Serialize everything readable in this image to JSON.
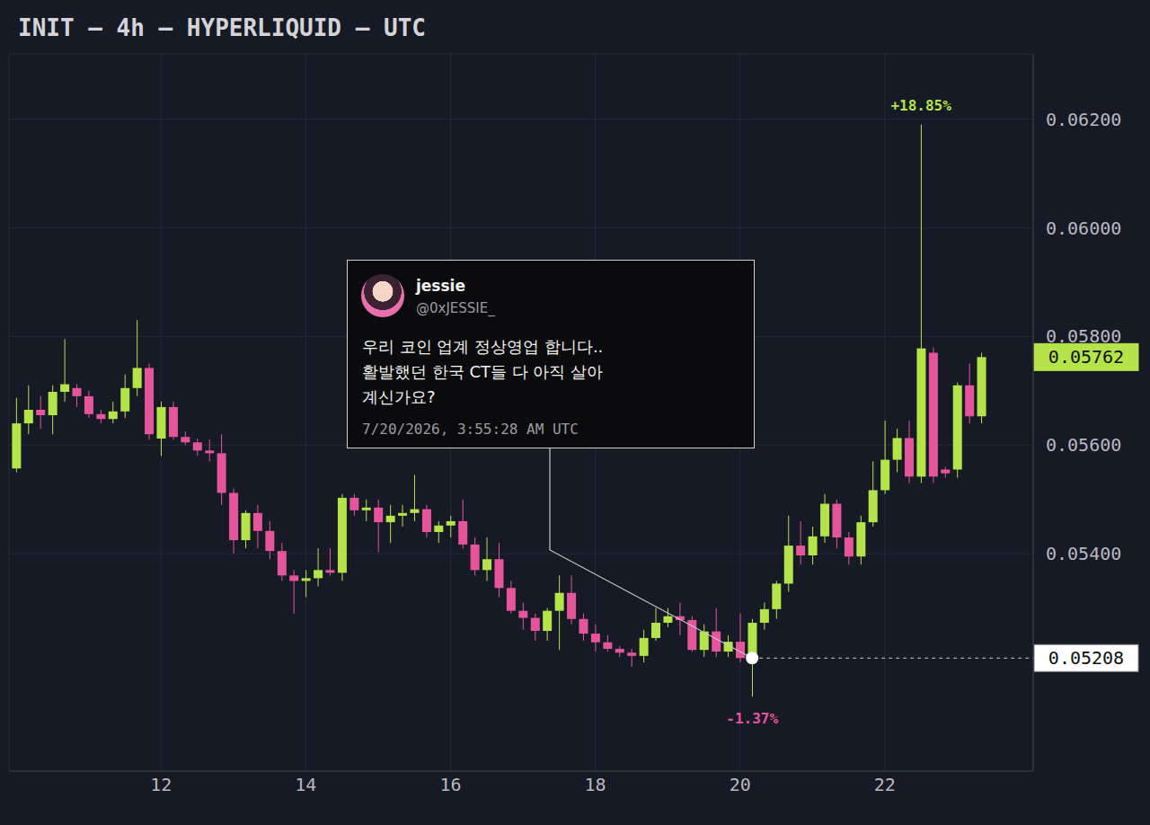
{
  "chart_data": {
    "type": "candlestick",
    "title": "INIT — 4h — HYPERLIQUID — UTC",
    "x": [
      10,
      10.167,
      10.333,
      10.5,
      10.667,
      10.833,
      11,
      11.167,
      11.333,
      11.5,
      11.667,
      11.833,
      12,
      12.167,
      12.333,
      12.5,
      12.667,
      12.833,
      13,
      13.167,
      13.333,
      13.5,
      13.667,
      13.833,
      14,
      14.167,
      14.333,
      14.5,
      14.667,
      14.833,
      15,
      15.167,
      15.333,
      15.5,
      15.667,
      15.833,
      16,
      16.167,
      16.333,
      16.5,
      16.667,
      16.833,
      17,
      17.167,
      17.333,
      17.5,
      17.667,
      17.833,
      18,
      18.167,
      18.333,
      18.5,
      18.667,
      18.833,
      19,
      19.167,
      19.333,
      19.5,
      19.667,
      19.833,
      20,
      20.167,
      20.333,
      20.5,
      20.667,
      20.833,
      21,
      21.167,
      21.333,
      21.5,
      21.667,
      21.833,
      22,
      22.167,
      22.333,
      22.5,
      22.667,
      22.833,
      23,
      23.167,
      23.333
    ],
    "open": [
      0.05557,
      0.0564,
      0.05665,
      0.05655,
      0.05698,
      0.05705,
      0.0569,
      0.05657,
      0.05648,
      0.05662,
      0.05705,
      0.05742,
      0.05612,
      0.0567,
      0.05615,
      0.05605,
      0.0559,
      0.05585,
      0.05512,
      0.05425,
      0.05475,
      0.05442,
      0.05405,
      0.0536,
      0.0535,
      0.05355,
      0.0537,
      0.05365,
      0.05503,
      0.0548,
      0.05485,
      0.05458,
      0.0547,
      0.05475,
      0.05482,
      0.0544,
      0.05452,
      0.0546,
      0.05417,
      0.0537,
      0.0539,
      0.05337,
      0.05295,
      0.05282,
      0.05258,
      0.05295,
      0.05328,
      0.0528,
      0.05253,
      0.05237,
      0.05225,
      0.05218,
      0.05212,
      0.05245,
      0.05273,
      0.05285,
      0.05278,
      0.05223,
      0.05257,
      0.0522,
      0.05238,
      0.05208,
      0.05273,
      0.05298,
      0.05345,
      0.05415,
      0.05397,
      0.05432,
      0.05492,
      0.0543,
      0.05395,
      0.05458,
      0.05517,
      0.05573,
      0.05613,
      0.05542,
      0.0577,
      0.05555,
      0.05555,
      0.0571,
      0.05653
    ],
    "high": [
      0.05687,
      0.0571,
      0.0569,
      0.0571,
      0.05795,
      0.05712,
      0.057,
      0.05665,
      0.0568,
      0.0573,
      0.0583,
      0.0575,
      0.0568,
      0.0568,
      0.05625,
      0.05612,
      0.0561,
      0.0562,
      0.0552,
      0.0548,
      0.0549,
      0.0546,
      0.0542,
      0.0537,
      0.0537,
      0.0541,
      0.0541,
      0.0551,
      0.0551,
      0.055,
      0.055,
      0.0549,
      0.0549,
      0.05545,
      0.0549,
      0.0546,
      0.0547,
      0.055,
      0.0543,
      0.0543,
      0.0542,
      0.0535,
      0.0531,
      0.0529,
      0.053,
      0.0536,
      0.0536,
      0.0529,
      0.0527,
      0.0525,
      0.0523,
      0.05225,
      0.0526,
      0.053,
      0.053,
      0.0531,
      0.05285,
      0.0527,
      0.053,
      0.0525,
      0.0529,
      0.0528,
      0.0531,
      0.0535,
      0.0547,
      0.0546,
      0.0545,
      0.0551,
      0.055,
      0.0544,
      0.0547,
      0.0557,
      0.05645,
      0.0563,
      0.05645,
      0.0619,
      0.0578,
      0.0556,
      0.05715,
      0.0575,
      0.0577
    ],
    "low": [
      0.0555,
      0.0562,
      0.0563,
      0.0562,
      0.0568,
      0.0567,
      0.0565,
      0.0564,
      0.0564,
      0.0565,
      0.0569,
      0.0561,
      0.0558,
      0.0561,
      0.056,
      0.0558,
      0.0557,
      0.0549,
      0.054,
      0.0541,
      0.0541,
      0.0539,
      0.0535,
      0.0529,
      0.0532,
      0.0534,
      0.0536,
      0.0535,
      0.0547,
      0.0546,
      0.05403,
      0.0542,
      0.0545,
      0.0546,
      0.0543,
      0.0542,
      0.0543,
      0.0541,
      0.0536,
      0.0535,
      0.0532,
      0.0529,
      0.0526,
      0.0524,
      0.0524,
      0.05223,
      0.0527,
      0.0524,
      0.0522,
      0.0522,
      0.0521,
      0.05192,
      0.052,
      0.0524,
      0.05265,
      0.0525,
      0.0522,
      0.0521,
      0.0521,
      0.0521,
      0.052,
      0.05137,
      0.0526,
      0.0528,
      0.0533,
      0.0538,
      0.0538,
      0.0542,
      0.0541,
      0.0538,
      0.0538,
      0.0545,
      0.0551,
      0.0555,
      0.0553,
      0.0553,
      0.0553,
      0.0554,
      0.0554,
      0.0564,
      0.0564
    ],
    "close": [
      0.0564,
      0.05665,
      0.05655,
      0.05698,
      0.05712,
      0.0569,
      0.05657,
      0.05648,
      0.05662,
      0.05705,
      0.05742,
      0.0562,
      0.0567,
      0.05615,
      0.05605,
      0.0559,
      0.05585,
      0.05512,
      0.05425,
      0.05475,
      0.05442,
      0.05405,
      0.0536,
      0.0535,
      0.05355,
      0.0537,
      0.05365,
      0.05503,
      0.0548,
      0.05485,
      0.05458,
      0.0547,
      0.05475,
      0.05482,
      0.0544,
      0.05452,
      0.0546,
      0.05417,
      0.0537,
      0.0539,
      0.05337,
      0.05295,
      0.05282,
      0.05258,
      0.05295,
      0.05328,
      0.0528,
      0.05253,
      0.05237,
      0.05225,
      0.05218,
      0.05212,
      0.05245,
      0.05273,
      0.05285,
      0.05278,
      0.05223,
      0.05257,
      0.0522,
      0.05238,
      0.05208,
      0.05273,
      0.05298,
      0.05345,
      0.05415,
      0.05397,
      0.05432,
      0.05492,
      0.0543,
      0.05395,
      0.05458,
      0.05517,
      0.05573,
      0.05613,
      0.05542,
      0.05778,
      0.05542,
      0.05548,
      0.0571,
      0.05653,
      0.05762
    ],
    "colors": [
      "#b4e34a",
      "#b4e34a",
      "#e4559b",
      "#b4e34a",
      "#b4e34a",
      "#e4559b",
      "#e4559b",
      "#e4559b",
      "#b4e34a",
      "#b4e34a",
      "#b4e34a",
      "#e4559b",
      "#b4e34a",
      "#e4559b",
      "#e4559b",
      "#e4559b",
      "#e4559b",
      "#e4559b",
      "#e4559b",
      "#b4e34a",
      "#e4559b",
      "#e4559b",
      "#e4559b",
      "#e4559b",
      "#b4e34a",
      "#b4e34a",
      "#e4559b",
      "#b4e34a",
      "#e4559b",
      "#b4e34a",
      "#e4559b",
      "#b4e34a",
      "#b4e34a",
      "#b4e34a",
      "#e4559b",
      "#b4e34a",
      "#b4e34a",
      "#e4559b",
      "#e4559b",
      "#b4e34a",
      "#e4559b",
      "#e4559b",
      "#e4559b",
      "#e4559b",
      "#b4e34a",
      "#b4e34a",
      "#e4559b",
      "#e4559b",
      "#e4559b",
      "#e4559b",
      "#e4559b",
      "#e4559b",
      "#b4e34a",
      "#b4e34a",
      "#b4e34a",
      "#e4559b",
      "#e4559b",
      "#b4e34a",
      "#e4559b",
      "#b4e34a",
      "#e4559b",
      "#b4e34a",
      "#b4e34a",
      "#b4e34a",
      "#b4e34a",
      "#e4559b",
      "#b4e34a",
      "#b4e34a",
      "#e4559b",
      "#e4559b",
      "#b4e34a",
      "#b4e34a",
      "#b4e34a",
      "#b4e34a",
      "#e4559b",
      "#b4e34a",
      "#e4559b",
      "#e4559b",
      "#b4e34a",
      "#e4559b",
      "#b4e34a"
    ],
    "xlim": [
      9.9,
      24.05
    ],
    "xticks": [
      12,
      14,
      16,
      18,
      20,
      22
    ],
    "ylim": [
      0.05,
      0.0632
    ],
    "yticks": [
      {
        "value": 0.054,
        "label": "0.05400"
      },
      {
        "value": 0.056,
        "label": "0.05600"
      },
      {
        "value": 0.058,
        "label": "0.05800"
      },
      {
        "value": 0.06,
        "label": "0.06000"
      },
      {
        "value": 0.062,
        "label": "0.06200"
      }
    ],
    "grid": true,
    "price_line": {
      "value": 0.05762,
      "color": "#b4e34a"
    },
    "marked_point": {
      "x": 20.167,
      "y": 0.05208
    },
    "annotations": [
      {
        "text": "+18.85%",
        "x": 22.5,
        "y": 0.0619,
        "color": "#b4e34a"
      },
      {
        "text": "-1.37%",
        "x": 20.167,
        "y": 0.05137,
        "color": "#e4559b"
      }
    ],
    "tweet": {
      "name": "jessie",
      "handle": "@0xJESSIE_",
      "text_lines": [
        "우리 코인 업계 정상영업 합니다..",
        "활발했던 한국 CT들 다 아직 살아",
        "계신가요?"
      ],
      "timestamp": "7/20/2026, 3:55:28 AM UTC"
    }
  }
}
